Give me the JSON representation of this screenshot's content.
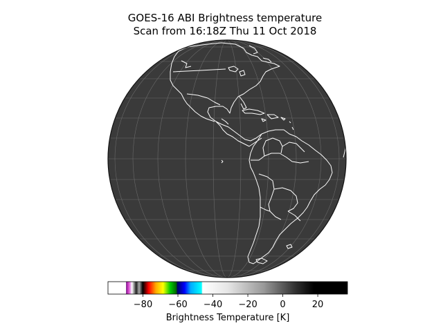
{
  "title": {
    "line1": "GOES-16 ABI Brightness temperature",
    "line2": "Scan from 16:18Z Thu 11 Oct 2018"
  },
  "map": {
    "projection": "geostationary full disk",
    "background_color": "#3a3a3a",
    "coastline_color": "#ffffff",
    "gridline_color": "#6a6a6a",
    "region": "Americas"
  },
  "colorbar": {
    "label": "Brightness Temperature [K]",
    "range": [
      -100,
      37
    ],
    "ticks": [
      -80,
      -60,
      -40,
      -20,
      0,
      20
    ],
    "tick_labels": [
      "−80",
      "−60",
      "−40",
      "−20",
      "0",
      "20"
    ],
    "colormap": "IR enhanced"
  }
}
